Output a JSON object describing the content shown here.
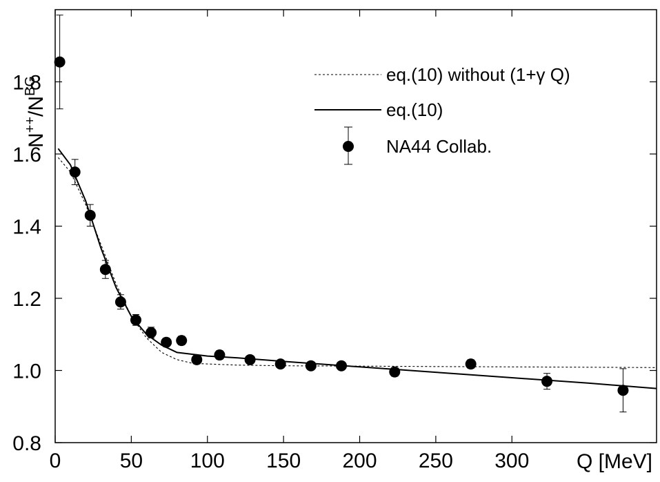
{
  "chart_data": {
    "type": "scatter",
    "title": "",
    "xlabel": "Q [MeV]",
    "ylabel": {
      "base": "N",
      "sup1": "++",
      "sep": "/N",
      "sup2": "BG"
    },
    "xlim": [
      0,
      395
    ],
    "ylim": [
      0.8,
      2.0
    ],
    "xticks": [
      0,
      50,
      100,
      150,
      200,
      250,
      300
    ],
    "yticks": [
      0.8,
      1.0,
      1.2,
      1.4,
      1.6,
      1.8
    ],
    "ytick_labels": [
      "0.8",
      "1.0",
      "1.2",
      "1.4",
      "1.6",
      "1.8"
    ],
    "grid": false,
    "legend_position": "top-right",
    "series": [
      {
        "name": "eq.(10) without (1+γ Q)",
        "kind": "line",
        "style": "dotted",
        "x": [
          2,
          10,
          20,
          30,
          40,
          50,
          60,
          70,
          80,
          90,
          100,
          120,
          150,
          200,
          250,
          300,
          350,
          395
        ],
        "y": [
          1.59,
          1.55,
          1.46,
          1.35,
          1.24,
          1.15,
          1.09,
          1.05,
          1.03,
          1.02,
          1.018,
          1.015,
          1.013,
          1.012,
          1.011,
          1.01,
          1.009,
          1.008
        ]
      },
      {
        "name": "eq.(10)",
        "kind": "line",
        "style": "solid",
        "x": [
          2,
          10,
          20,
          30,
          40,
          50,
          60,
          70,
          80,
          90,
          100,
          120,
          150,
          200,
          250,
          300,
          350,
          395
        ],
        "y": [
          1.615,
          1.57,
          1.47,
          1.34,
          1.23,
          1.15,
          1.1,
          1.07,
          1.05,
          1.045,
          1.04,
          1.035,
          1.025,
          1.01,
          0.995,
          0.98,
          0.965,
          0.95
        ]
      },
      {
        "name": "NA44 Collab.",
        "kind": "scatter",
        "x": [
          3,
          13,
          23,
          33,
          43,
          53,
          63,
          73,
          83,
          93,
          108,
          128,
          148,
          168,
          188,
          223,
          273,
          323,
          373
        ],
        "y": [
          1.855,
          1.55,
          1.43,
          1.28,
          1.19,
          1.14,
          1.105,
          1.078,
          1.083,
          1.03,
          1.043,
          1.03,
          1.018,
          1.013,
          1.013,
          0.996,
          1.018,
          0.97,
          0.945
        ],
        "err": [
          0.13,
          0.035,
          0.03,
          0.025,
          0.02,
          0.015,
          0.015,
          0.012,
          0.012,
          0.012,
          0.012,
          0.01,
          0.01,
          0.01,
          0.01,
          0.012,
          0.012,
          0.022,
          0.06
        ]
      }
    ],
    "legend_errorbar_sample": true
  }
}
